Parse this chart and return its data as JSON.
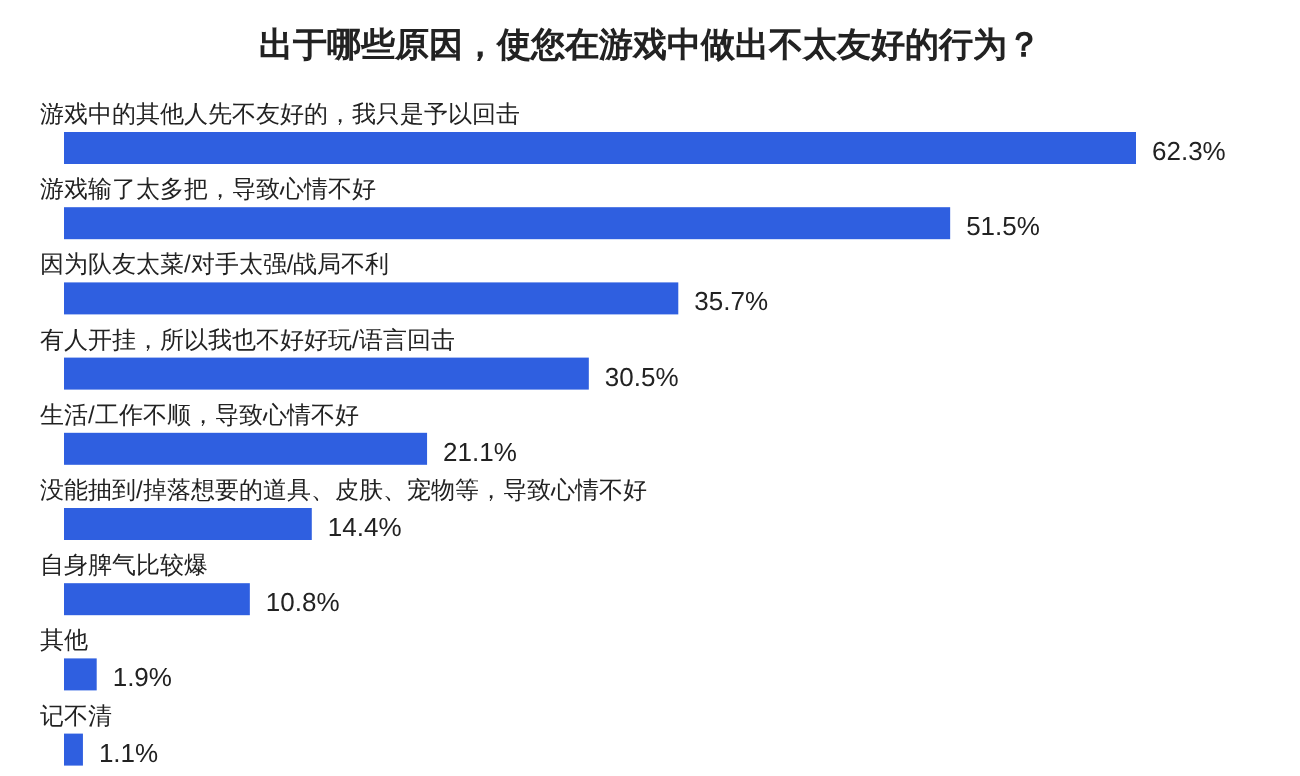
{
  "chart_data": {
    "type": "bar",
    "orientation": "horizontal",
    "title": "出于哪些原因，使您在游戏中做出不太友好的行为？",
    "categories": [
      "游戏中的其他人先不友好的，我只是予以回击",
      "游戏输了太多把，导致心情不好",
      "因为队友太菜/对手太强/战局不利",
      "有人开挂，所以我也不好好玩/语言回击",
      "生活/工作不顺，导致心情不好",
      "没能抽到/掉落想要的道具、皮肤、宠物等，导致心情不好",
      "自身脾气比较爆",
      "其他",
      "记不清"
    ],
    "values": [
      62.3,
      51.5,
      35.7,
      30.5,
      21.1,
      14.4,
      10.8,
      1.9,
      1.1
    ],
    "value_labels": [
      "62.3%",
      "51.5%",
      "35.7%",
      "30.5%",
      "21.1%",
      "14.4%",
      "10.8%",
      "1.9%",
      "1.1%"
    ],
    "color": "#2f5fe0"
  }
}
